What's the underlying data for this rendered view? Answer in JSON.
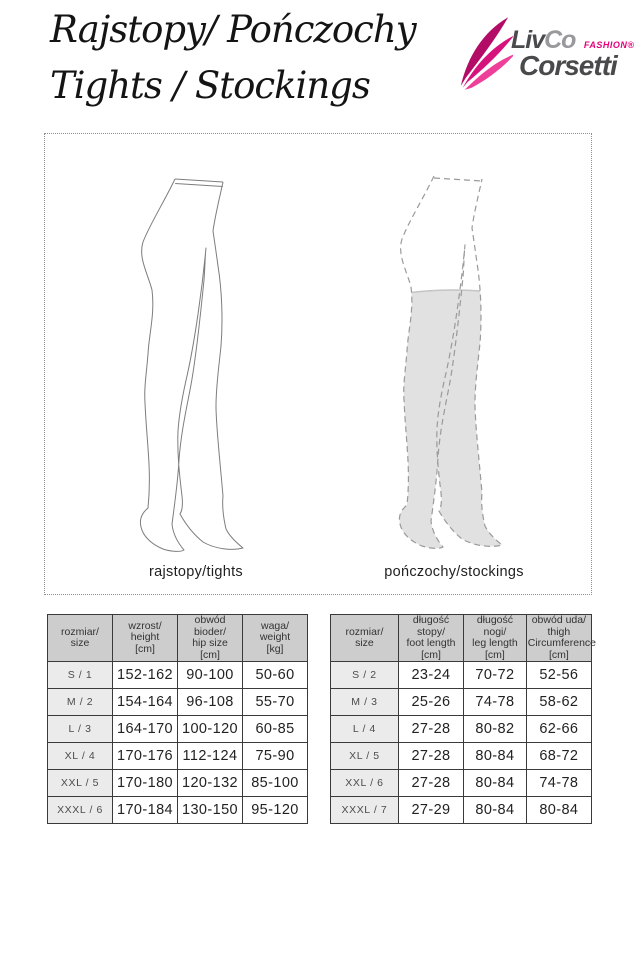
{
  "header": {
    "title_line1": "Rajstopy/ Pończochy",
    "title_line2": "Tights / Stockings"
  },
  "logo": {
    "brand_liv": "Liv",
    "brand_co": "Co",
    "fashion_label": "FASHION®",
    "brand_corsetti": "Corsetti",
    "pink_color": "#e2017b",
    "dark_color": "#4a4a4c"
  },
  "figures": {
    "tights_caption": "rajstopy/tights",
    "stockings_caption": "pończochy/stockings",
    "stocking_fill_color": "#e1e1e1",
    "outline_color": "#7d7d7d"
  },
  "size_tables": {
    "tights": {
      "headers": [
        [
          "rozmiar/",
          "size"
        ],
        [
          "wzrost/",
          "height",
          "[cm]"
        ],
        [
          "obwód bioder/",
          "hip size",
          "[cm]"
        ],
        [
          "waga/",
          "weight",
          "[kg]"
        ]
      ],
      "rows": [
        [
          "S / 1",
          "152-162",
          "90-100",
          "50-60"
        ],
        [
          "M / 2",
          "154-164",
          "96-108",
          "55-70"
        ],
        [
          "L / 3",
          "164-170",
          "100-120",
          "60-85"
        ],
        [
          "XL / 4",
          "170-176",
          "112-124",
          "75-90"
        ],
        [
          "XXL / 5",
          "170-180",
          "120-132",
          "85-100"
        ],
        [
          "XXXL / 6",
          "170-184",
          "130-150",
          "95-120"
        ]
      ]
    },
    "stockings": {
      "headers": [
        [
          "rozmiar/",
          "size"
        ],
        [
          "długość stopy/",
          "foot length",
          "[cm]"
        ],
        [
          "długość nogi/",
          "leg length",
          "[cm]"
        ],
        [
          "obwód uda/",
          "thigh",
          "Circumference",
          "[cm]"
        ]
      ],
      "rows": [
        [
          "S / 2",
          "23-24",
          "70-72",
          "52-56"
        ],
        [
          "M / 3",
          "25-26",
          "74-78",
          "58-62"
        ],
        [
          "L / 4",
          "27-28",
          "80-82",
          "62-66"
        ],
        [
          "XL / 5",
          "27-28",
          "80-84",
          "68-72"
        ],
        [
          "XXL / 6",
          "27-28",
          "80-84",
          "74-78"
        ],
        [
          "XXXL / 7",
          "27-29",
          "80-84",
          "80-84"
        ]
      ]
    }
  }
}
